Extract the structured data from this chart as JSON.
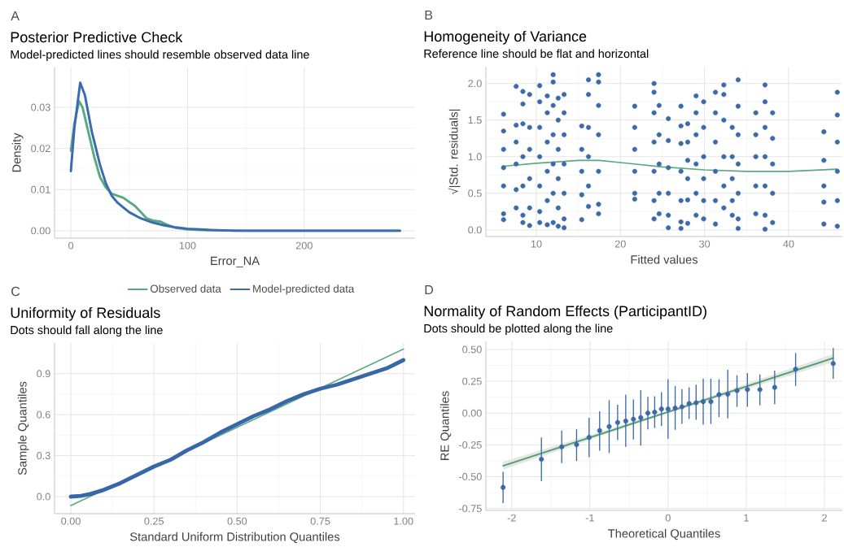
{
  "chart_data": [
    {
      "type": "line",
      "title": "Posterior Predictive Check",
      "subtitle": "Model-predicted lines should resemble observed data line",
      "xlabel": "Error_NA",
      "ylabel": "Density",
      "annotations": [
        "A"
      ],
      "xlim": [
        -14,
        295
      ],
      "ylim": [
        -0.0018,
        0.0397
      ],
      "xticks": [
        0,
        100,
        200
      ],
      "yticks": [
        {
          "value": 0,
          "label": "0.00"
        },
        {
          "value": 0.01,
          "label": "0.01"
        },
        {
          "value": 0.02,
          "label": "0.02"
        },
        {
          "value": 0.03,
          "label": "0.03"
        }
      ],
      "grid": true,
      "legend": "bottom",
      "series": [
        {
          "name": "Observed data",
          "color": "#5aaa80",
          "x": [
            0,
            3,
            7,
            10,
            15,
            20,
            25,
            30,
            35,
            40,
            45,
            50,
            55,
            60,
            65,
            70,
            77,
            82,
            90,
            100,
            120,
            150,
            200,
            282
          ],
          "values": [
            0.0195,
            0.026,
            0.0315,
            0.03,
            0.024,
            0.018,
            0.013,
            0.0105,
            0.009,
            0.0085,
            0.008,
            0.007,
            0.006,
            0.0045,
            0.003,
            0.0025,
            0.0022,
            0.0015,
            0.0007,
            0.0003,
            0.0001,
            0,
            0,
            0
          ]
        },
        {
          "name": "Model-predicted data",
          "color": "#3a6ab0",
          "x": [
            0,
            3,
            8,
            12,
            18,
            25,
            30,
            35,
            40,
            50,
            60,
            70,
            80,
            90,
            100,
            120,
            140,
            282
          ],
          "values": [
            0.0145,
            0.025,
            0.036,
            0.033,
            0.024,
            0.016,
            0.0115,
            0.0085,
            0.0068,
            0.0045,
            0.003,
            0.002,
            0.0013,
            0.0008,
            0.0005,
            0.0002,
            0,
            0
          ]
        }
      ]
    },
    {
      "type": "scatter",
      "title": "Homogeneity of Variance",
      "subtitle": "Reference line should be flat and horizontal",
      "xlabel": "Fitted values",
      "ylabel": "√|Std. residuals|",
      "annotations": [
        "B"
      ],
      "xlim": [
        4.0,
        46.4
      ],
      "ylim": [
        -0.09,
        2.23
      ],
      "xticks": [
        10,
        20,
        30,
        40
      ],
      "yticks": [
        {
          "value": 0,
          "label": "0.0"
        },
        {
          "value": 0.5,
          "label": "0.5"
        },
        {
          "value": 1,
          "label": "1.0"
        },
        {
          "value": 1.5,
          "label": "1.5"
        },
        {
          "value": 2,
          "label": "2.0"
        }
      ],
      "grid": true,
      "series": [
        {
          "color": "#3b6aa8",
          "x": [
            6.1,
            6.1,
            6.1,
            6.1,
            6.1,
            6.1,
            6.1,
            7.6,
            7.6,
            7.6,
            7.6,
            7.6,
            7.6,
            8.4,
            8.4,
            8.4,
            8.4,
            8.4,
            8.4,
            8.4,
            9.2,
            9.2,
            9.2,
            9.2,
            9.2,
            9.2,
            10.4,
            10.4,
            10.4,
            10.4,
            10.4,
            10.4,
            10.4,
            11.3,
            11.3,
            11.3,
            11.3,
            11.3,
            11.3,
            12.0,
            12.0,
            12.0,
            12.0,
            12.0,
            12.0,
            12.0,
            12.6,
            12.6,
            12.6,
            12.6,
            12.6,
            12.6,
            13.3,
            13.3,
            13.3,
            13.3,
            13.3,
            13.3,
            13.3,
            15.4,
            15.4,
            15.4,
            15.4,
            15.4,
            16.2,
            16.2,
            16.2,
            16.2,
            16.2,
            16.2,
            17.4,
            17.4,
            17.4,
            17.4,
            17.4,
            17.4,
            17.4,
            21.7,
            21.7,
            21.7,
            21.7,
            21.7,
            21.7,
            24.0,
            24.0,
            24.0,
            24.0,
            24.0,
            24.0,
            24.0,
            24.6,
            24.6,
            24.6,
            24.6,
            24.6,
            25.7,
            25.7,
            25.7,
            25.7,
            25.7,
            25.7,
            27.2,
            27.2,
            27.2,
            27.2,
            27.2,
            27.2,
            27.2,
            28.0,
            28.0,
            28.0,
            28.0,
            28.0,
            28.0,
            29.0,
            29.0,
            29.0,
            29.0,
            29.0,
            29.0,
            29.9,
            29.9,
            29.9,
            29.9,
            29.9,
            29.9,
            31.3,
            31.3,
            31.3,
            31.3,
            31.3,
            31.3,
            32.3,
            32.3,
            32.3,
            32.3,
            32.3,
            32.3,
            33.3,
            33.3,
            33.3,
            33.3,
            33.3,
            34.0,
            34.0,
            34.0,
            34.0,
            34.0,
            34.0,
            34.0,
            36.1,
            36.1,
            36.1,
            36.1,
            36.1,
            37.2,
            37.2,
            37.2,
            37.2,
            37.2,
            37.2,
            37.2,
            38.1,
            38.1,
            38.1,
            38.1,
            38.1,
            44.2,
            44.2,
            44.2,
            44.2,
            44.2,
            45.8,
            45.8,
            45.8,
            45.8,
            45.8,
            45.8
          ],
          "values": [
            1.58,
            1.35,
            1.1,
            0.85,
            0.6,
            0.22,
            0.14,
            1.96,
            1.43,
            1.2,
            0.9,
            0.55,
            0.3,
            1.89,
            1.72,
            1.45,
            1.0,
            0.6,
            0.2,
            0.1,
            1.85,
            1.4,
            1.1,
            0.7,
            0.3,
            0.06,
            1.97,
            1.75,
            1.4,
            1.0,
            0.6,
            0.25,
            0.1,
            1.83,
            1.6,
            1.2,
            0.8,
            0.4,
            0.07,
            2.12,
            2.02,
            1.7,
            1.3,
            0.9,
            0.5,
            0.1,
            1.8,
            1.5,
            1.1,
            0.7,
            0.3,
            0.05,
            1.85,
            1.6,
            1.3,
            0.9,
            0.5,
            0.15,
            0.03,
            1.42,
            1.1,
            0.8,
            0.48,
            0.14,
            2.05,
            1.85,
            1.4,
            1.0,
            0.6,
            0.32,
            2.12,
            2.02,
            1.7,
            1.3,
            0.8,
            0.35,
            0.22,
            1.69,
            1.4,
            1.1,
            0.8,
            0.5,
            0.42,
            2.0,
            1.88,
            1.6,
            1.2,
            0.8,
            0.4,
            0.15,
            1.7,
            1.3,
            0.9,
            0.5,
            0.22,
            1.52,
            1.22,
            0.85,
            0.5,
            0.2,
            0.03,
            1.69,
            1.42,
            1.18,
            0.8,
            0.4,
            0.11,
            0.02,
            1.45,
            1.2,
            0.95,
            0.7,
            0.41,
            0.09,
            1.83,
            1.6,
            1.3,
            0.9,
            0.5,
            0.2,
            1.75,
            1.4,
            1.0,
            0.7,
            0.4,
            0.15,
            1.88,
            1.6,
            1.2,
            0.8,
            0.4,
            0.08,
            1.98,
            1.85,
            1.5,
            1.0,
            0.6,
            0.3,
            1.4,
            1.0,
            0.7,
            0.4,
            0.2,
            2.05,
            1.69,
            1.3,
            0.9,
            0.5,
            0.15,
            0.02,
            1.6,
            1.3,
            1.0,
            0.6,
            0.22,
            1.98,
            1.75,
            1.4,
            1.0,
            0.6,
            0.2,
            0.01,
            1.6,
            1.25,
            0.9,
            0.5,
            0.1,
            1.34,
            0.95,
            0.6,
            0.38,
            0.08,
            1.88,
            1.57,
            1.2,
            0.8,
            0.4,
            0.05
          ]
        },
        {
          "type": "line",
          "color": "#5aaa80",
          "x": [
            6.1,
            10,
            15,
            17.5,
            20,
            25,
            30,
            35,
            40,
            45.8
          ],
          "values": [
            0.87,
            0.91,
            0.95,
            0.95,
            0.92,
            0.86,
            0.82,
            0.8,
            0.8,
            0.83
          ]
        }
      ]
    },
    {
      "type": "line",
      "title": "Uniformity of Residuals",
      "subtitle": "Dots should fall along the line",
      "xlabel": "Standard Uniform Distribution Quantiles",
      "ylabel": "Sample Quantiles",
      "annotations": [
        "C"
      ],
      "xlim": [
        -0.049,
        1.035
      ],
      "ylim": [
        -0.125,
        1.125
      ],
      "xticks": [
        {
          "value": 0,
          "label": "0.00"
        },
        {
          "value": 0.25,
          "label": "0.25"
        },
        {
          "value": 0.5,
          "label": "0.50"
        },
        {
          "value": 0.75,
          "label": "0.75"
        },
        {
          "value": 1,
          "label": "1.00"
        }
      ],
      "yticks": [
        {
          "value": 0,
          "label": "0.0"
        },
        {
          "value": 0.3,
          "label": "0.3"
        },
        {
          "value": 0.6,
          "label": "0.6"
        },
        {
          "value": 0.9,
          "label": "0.9"
        }
      ],
      "grid": true,
      "series": [
        {
          "color": "#5aaa80",
          "x": [
            0,
            1
          ],
          "values": [
            -0.065,
            1.08
          ]
        },
        {
          "color": "#3867a8",
          "x": [
            0,
            0.03,
            0.06,
            0.1,
            0.15,
            0.2,
            0.25,
            0.3,
            0.35,
            0.4,
            0.45,
            0.5,
            0.55,
            0.6,
            0.65,
            0.7,
            0.75,
            0.8,
            0.85,
            0.9,
            0.95,
            1.0
          ],
          "values": [
            0,
            0.005,
            0.02,
            0.05,
            0.1,
            0.16,
            0.22,
            0.27,
            0.34,
            0.4,
            0.47,
            0.53,
            0.59,
            0.64,
            0.7,
            0.75,
            0.79,
            0.82,
            0.86,
            0.9,
            0.94,
            1.0
          ]
        }
      ]
    },
    {
      "type": "scatter",
      "title": "Normality of Random Effects (ParticipantID)",
      "subtitle": "Dots should be plotted along the line",
      "xlabel": "Theoretical Quantiles",
      "ylabel": "RE Quantiles",
      "annotations": [
        "D"
      ],
      "xlim": [
        -2.33,
        2.23
      ],
      "ylim": [
        -0.765,
        0.564
      ],
      "xticks": [
        -2,
        -1,
        0,
        1,
        2
      ],
      "yticks": [
        {
          "value": 0.5,
          "label": "0.50"
        },
        {
          "value": 0.25,
          "label": "0.25"
        },
        {
          "value": 0,
          "label": "0.00"
        },
        {
          "value": -0.25,
          "label": "-0.25"
        },
        {
          "value": -0.5,
          "label": "-0.50"
        },
        {
          "value": -0.75,
          "label": "-0.75"
        }
      ],
      "grid": true,
      "series": [
        {
          "type": "line",
          "color": "#4c9e6c",
          "x": [
            -2.11,
            0,
            2.11
          ],
          "values": [
            -0.414,
            0.009,
            0.432
          ],
          "lower": [
            -0.444,
            -0.001,
            0.4
          ],
          "upper": [
            -0.384,
            0.019,
            0.464
          ]
        },
        {
          "color": "#3b6aa8",
          "x": [
            -2.11,
            -1.62,
            -1.36,
            -1.17,
            -1.01,
            -0.875,
            -0.753,
            -0.645,
            -0.541,
            -0.443,
            -0.349,
            -0.258,
            -0.171,
            -0.084,
            0.0,
            0.091,
            0.178,
            0.269,
            0.359,
            0.45,
            0.548,
            0.652,
            0.764,
            0.882,
            1.015,
            1.175,
            1.364,
            1.632,
            2.113
          ],
          "values": [
            -0.584,
            -0.363,
            -0.265,
            -0.248,
            -0.191,
            -0.138,
            -0.106,
            -0.074,
            -0.063,
            -0.048,
            -0.036,
            0.0,
            0.007,
            0.032,
            0.032,
            0.039,
            0.049,
            0.075,
            0.081,
            0.09,
            0.09,
            0.145,
            0.149,
            0.177,
            0.185,
            0.185,
            0.202,
            0.345,
            0.389
          ],
          "errors": [
            [
              -0.707,
              -0.461
            ],
            [
              -0.535,
              -0.191
            ],
            [
              -0.393,
              -0.138
            ],
            [
              -0.376,
              -0.127
            ],
            [
              -0.346,
              -0.036
            ],
            [
              -0.295,
              0.015
            ],
            [
              -0.314,
              0.102
            ],
            [
              -0.212,
              0.066
            ],
            [
              -0.265,
              0.145
            ],
            [
              -0.208,
              0.107
            ],
            [
              -0.255,
              0.181
            ],
            [
              -0.127,
              0.128
            ],
            [
              -0.117,
              0.132
            ],
            [
              -0.102,
              0.164
            ],
            [
              -0.202,
              0.266
            ],
            [
              -0.131,
              0.213
            ],
            [
              -0.085,
              0.188
            ],
            [
              -0.046,
              0.202
            ],
            [
              -0.053,
              0.224
            ],
            [
              -0.091,
              0.27
            ],
            [
              -0.085,
              0.27
            ],
            [
              -0.031,
              0.266
            ],
            [
              -0.042,
              0.34
            ],
            [
              0.049,
              0.298
            ],
            [
              0.049,
              0.315
            ],
            [
              0.06,
              0.304
            ],
            [
              0.071,
              0.334
            ],
            [
              0.213,
              0.472
            ],
            [
              0.27,
              0.511
            ]
          ]
        }
      ]
    }
  ]
}
